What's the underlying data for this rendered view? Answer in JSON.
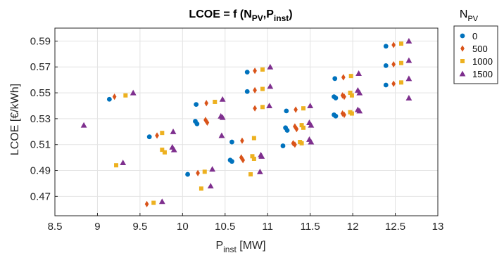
{
  "chart_data": {
    "type": "scatter",
    "title_main": "LCOE = f (N",
    "title_sub1": "PV",
    "title_mid": ",P",
    "title_sub2": "inst",
    "title_end": ")",
    "xlabel_main": "P",
    "xlabel_sub": "inst",
    "xlabel_end": " [MW]",
    "ylabel": "LCOE [€/kWh]",
    "xlim": [
      8.5,
      13
    ],
    "ylim": [
      0.455,
      0.6
    ],
    "xticks": [
      8.5,
      9,
      9.5,
      10,
      10.5,
      11,
      11.5,
      12,
      12.5,
      13
    ],
    "xtick_labels": [
      "8.5",
      "9",
      "9.5",
      "10",
      "10.5",
      "11",
      "11.5",
      "12",
      "12.5",
      "13"
    ],
    "yticks": [
      0.47,
      0.49,
      0.51,
      0.53,
      0.55,
      0.57,
      0.59
    ],
    "ytick_labels": [
      "0.47",
      "0.49",
      "0.51",
      "0.53",
      "0.55",
      "0.57",
      "0.59"
    ],
    "grid": true,
    "legend_title_main": "N",
    "legend_title_sub": "PV",
    "legend_position": "outside-right",
    "series": [
      {
        "name": "0",
        "color": "#0072BD",
        "marker": "circle",
        "points": [
          [
            9.14,
            0.545
          ],
          [
            9.61,
            0.516
          ],
          [
            10.06,
            0.487
          ],
          [
            10.16,
            0.541
          ],
          [
            10.15,
            0.528
          ],
          [
            10.17,
            0.526
          ],
          [
            10.58,
            0.512
          ],
          [
            10.56,
            0.498
          ],
          [
            10.58,
            0.497
          ],
          [
            10.76,
            0.566
          ],
          [
            10.76,
            0.551
          ],
          [
            11.18,
            0.509
          ],
          [
            11.22,
            0.536
          ],
          [
            11.21,
            0.523
          ],
          [
            11.23,
            0.521
          ],
          [
            11.79,
            0.561
          ],
          [
            11.78,
            0.547
          ],
          [
            11.8,
            0.546
          ],
          [
            11.78,
            0.533
          ],
          [
            11.8,
            0.532
          ],
          [
            12.39,
            0.586
          ],
          [
            12.39,
            0.571
          ],
          [
            12.39,
            0.556
          ]
        ]
      },
      {
        "name": "500",
        "color": "#D95319",
        "marker": "diamond",
        "points": [
          [
            9.2,
            0.547
          ],
          [
            9.58,
            0.464
          ],
          [
            9.7,
            0.517
          ],
          [
            10.18,
            0.488
          ],
          [
            10.28,
            0.542
          ],
          [
            10.27,
            0.529
          ],
          [
            10.29,
            0.527
          ],
          [
            10.7,
            0.513
          ],
          [
            10.69,
            0.5
          ],
          [
            10.71,
            0.498
          ],
          [
            10.85,
            0.567
          ],
          [
            10.85,
            0.552
          ],
          [
            10.85,
            0.538
          ],
          [
            11.3,
            0.511
          ],
          [
            11.32,
            0.51
          ],
          [
            11.33,
            0.537
          ],
          [
            11.32,
            0.524
          ],
          [
            11.34,
            0.522
          ],
          [
            11.89,
            0.562
          ],
          [
            11.88,
            0.548
          ],
          [
            11.9,
            0.547
          ],
          [
            11.88,
            0.534
          ],
          [
            11.9,
            0.533
          ],
          [
            12.48,
            0.587
          ],
          [
            12.48,
            0.572
          ],
          [
            12.48,
            0.557
          ]
        ]
      },
      {
        "name": "1000",
        "color": "#EDB120",
        "marker": "square",
        "points": [
          [
            9.22,
            0.494
          ],
          [
            9.33,
            0.548
          ],
          [
            9.66,
            0.465
          ],
          [
            9.76,
            0.519
          ],
          [
            9.76,
            0.506
          ],
          [
            9.79,
            0.504
          ],
          [
            10.22,
            0.476
          ],
          [
            10.26,
            0.489
          ],
          [
            10.38,
            0.543
          ],
          [
            10.8,
            0.487
          ],
          [
            10.84,
            0.515
          ],
          [
            10.82,
            0.501
          ],
          [
            10.84,
            0.499
          ],
          [
            10.94,
            0.568
          ],
          [
            10.94,
            0.553
          ],
          [
            10.94,
            0.539
          ],
          [
            11.38,
            0.512
          ],
          [
            11.4,
            0.511
          ],
          [
            11.42,
            0.538
          ],
          [
            11.4,
            0.525
          ],
          [
            11.42,
            0.523
          ],
          [
            11.98,
            0.563
          ],
          [
            11.97,
            0.55
          ],
          [
            11.99,
            0.548
          ],
          [
            11.97,
            0.535
          ],
          [
            11.99,
            0.534
          ],
          [
            12.57,
            0.588
          ],
          [
            12.57,
            0.573
          ],
          [
            12.57,
            0.558
          ]
        ]
      },
      {
        "name": "1500",
        "color": "#7E2F8E",
        "marker": "triangle",
        "points": [
          [
            8.84,
            0.525
          ],
          [
            9.3,
            0.496
          ],
          [
            9.42,
            0.55
          ],
          [
            9.76,
            0.466
          ],
          [
            9.89,
            0.52
          ],
          [
            9.88,
            0.508
          ],
          [
            9.9,
            0.506
          ],
          [
            10.33,
            0.478
          ],
          [
            10.35,
            0.491
          ],
          [
            10.47,
            0.545
          ],
          [
            10.45,
            0.532
          ],
          [
            10.47,
            0.531
          ],
          [
            10.46,
            0.517
          ],
          [
            10.91,
            0.489
          ],
          [
            10.92,
            0.502
          ],
          [
            10.93,
            0.501
          ],
          [
            11.03,
            0.57
          ],
          [
            11.03,
            0.555
          ],
          [
            11.02,
            0.54
          ],
          [
            11.5,
            0.54
          ],
          [
            11.49,
            0.527
          ],
          [
            11.51,
            0.525
          ],
          [
            11.49,
            0.514
          ],
          [
            11.51,
            0.512
          ],
          [
            12.07,
            0.565
          ],
          [
            12.06,
            0.552
          ],
          [
            12.08,
            0.55
          ],
          [
            12.06,
            0.537
          ],
          [
            12.08,
            0.536
          ],
          [
            12.66,
            0.59
          ],
          [
            12.66,
            0.575
          ],
          [
            12.66,
            0.561
          ],
          [
            12.66,
            0.546
          ]
        ]
      }
    ]
  }
}
